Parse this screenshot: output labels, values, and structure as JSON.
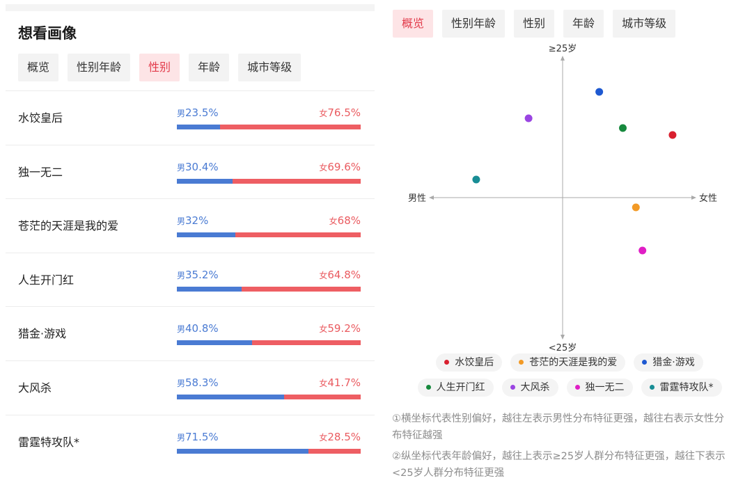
{
  "left": {
    "title": "想看画像",
    "tabs": [
      {
        "label": "概览",
        "active": false
      },
      {
        "label": "性别年龄",
        "active": false
      },
      {
        "label": "性别",
        "active": true
      },
      {
        "label": "年龄",
        "active": false
      },
      {
        "label": "城市等级",
        "active": false
      }
    ]
  },
  "right": {
    "tabs": [
      {
        "label": "概览",
        "active": true
      },
      {
        "label": "性别年龄",
        "active": false
      },
      {
        "label": "性别",
        "active": false
      },
      {
        "label": "年龄",
        "active": false
      },
      {
        "label": "城市等级",
        "active": false
      }
    ],
    "notes": [
      "①横坐标代表性别偏好，越往左表示男性分布特征更强，越往右表示女性分布特征越强",
      "②纵坐标代表年龄偏好，越往上表示≥25岁人群分布特征更强，越往下表示<25岁人群分布特征更强"
    ]
  },
  "colors": {
    "male": "#4a7bd3",
    "female": "#ee5e63"
  },
  "chart_data": [
    {
      "type": "bar",
      "stacked": true,
      "categories": [
        "水饺皇后",
        "独一无二",
        "苍茫的天涯是我的爱",
        "人生开门红",
        "猎金·游戏",
        "大风杀",
        "雷霆特攻队*"
      ],
      "series": [
        {
          "name": "男",
          "values": [
            23.5,
            30.4,
            32,
            35.2,
            40.8,
            58.3,
            71.5
          ],
          "labels": [
            "23.5%",
            "30.4%",
            "32%",
            "35.2%",
            "40.8%",
            "58.3%",
            "71.5%"
          ]
        },
        {
          "name": "女",
          "values": [
            76.5,
            69.6,
            68,
            64.8,
            59.2,
            41.7,
            28.5
          ],
          "labels": [
            "76.5%",
            "69.6%",
            "68%",
            "64.8%",
            "59.2%",
            "41.7%",
            "28.5%"
          ]
        }
      ]
    },
    {
      "type": "scatter",
      "axis_labels": {
        "left": "男性",
        "right": "女性",
        "top": "≥25岁",
        "bottom": "<25岁"
      },
      "xlim": [
        -1,
        1
      ],
      "ylim": [
        -1,
        1
      ],
      "points": [
        {
          "name": "水饺皇后",
          "x": 0.84,
          "y": 0.45,
          "color": "#d9202f"
        },
        {
          "name": "苍茫的天涯是我的爱",
          "x": 0.56,
          "y": -0.07,
          "color": "#f29a26"
        },
        {
          "name": "猎金·游戏",
          "x": 0.28,
          "y": 0.76,
          "color": "#1e59d1"
        },
        {
          "name": "人生开门红",
          "x": 0.46,
          "y": 0.5,
          "color": "#16893d"
        },
        {
          "name": "大风杀",
          "x": -0.26,
          "y": 0.57,
          "color": "#9a45e2"
        },
        {
          "name": "独一无二",
          "x": 0.61,
          "y": -0.38,
          "color": "#e01ec5"
        },
        {
          "name": "雷霆特攻队*",
          "x": -0.66,
          "y": 0.13,
          "color": "#188d95"
        }
      ],
      "legend_rows": [
        [
          0,
          1,
          2
        ],
        [
          3,
          4,
          5,
          6
        ]
      ]
    }
  ]
}
